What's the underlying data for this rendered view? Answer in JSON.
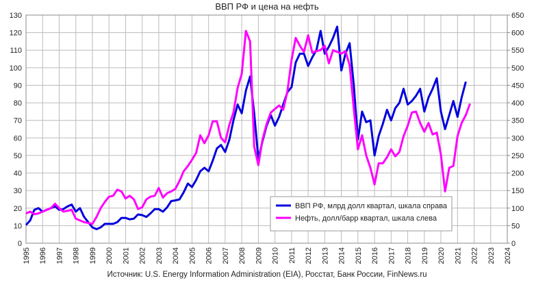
{
  "chart_data": {
    "type": "line",
    "title": "ВВП РФ и цена на нефть",
    "source": "Источник: U.S. Energy Information Administration (EIA), Росстат, Банк России, FinNews.ru",
    "x": [
      1995,
      1995.25,
      1995.5,
      1995.75,
      1996,
      1996.25,
      1996.5,
      1996.75,
      1997,
      1997.25,
      1997.5,
      1997.75,
      1998,
      1998.25,
      1998.5,
      1998.75,
      1999,
      1999.25,
      1999.5,
      1999.75,
      2000,
      2000.25,
      2000.5,
      2000.75,
      2001,
      2001.25,
      2001.5,
      2001.75,
      2002,
      2002.25,
      2002.5,
      2002.75,
      2003,
      2003.25,
      2003.5,
      2003.75,
      2004,
      2004.25,
      2004.5,
      2004.75,
      2005,
      2005.25,
      2005.5,
      2005.75,
      2006,
      2006.25,
      2006.5,
      2006.75,
      2007,
      2007.25,
      2007.5,
      2007.75,
      2008,
      2008.25,
      2008.5,
      2008.75,
      2009,
      2009.25,
      2009.5,
      2009.75,
      2010,
      2010.25,
      2010.5,
      2010.75,
      2011,
      2011.25,
      2011.5,
      2011.75,
      2012,
      2012.25,
      2012.5,
      2012.75,
      2013,
      2013.25,
      2013.5,
      2013.75,
      2014,
      2014.25,
      2014.5,
      2014.75,
      2015,
      2015.25,
      2015.5,
      2015.75,
      2016,
      2016.25,
      2016.5,
      2016.75,
      2017,
      2017.25,
      2017.5,
      2017.75,
      2018,
      2018.25,
      2018.5,
      2018.75,
      2019,
      2019.25,
      2019.5,
      2019.75,
      2020,
      2020.25,
      2020.5,
      2020.75,
      2021,
      2021.25,
      2021.5,
      2021.75
    ],
    "series": [
      {
        "name": "ВВП РФ, млрд долл квартал, шкала справа",
        "color": "#0000dd",
        "axis": "y2",
        "values": [
          52,
          65,
          95,
          100,
          90,
          95,
          100,
          105,
          95,
          97,
          105,
          110,
          90,
          100,
          75,
          60,
          45,
          40,
          45,
          55,
          55,
          55,
          60,
          72,
          72,
          68,
          70,
          82,
          80,
          75,
          85,
          97,
          97,
          90,
          102,
          120,
          122,
          125,
          145,
          170,
          160,
          180,
          205,
          215,
          205,
          235,
          270,
          280,
          260,
          295,
          350,
          395,
          370,
          435,
          475,
          370,
          240,
          290,
          335,
          365,
          335,
          360,
          395,
          430,
          445,
          515,
          540,
          540,
          505,
          530,
          550,
          605,
          540,
          560,
          585,
          617,
          492,
          540,
          570,
          450,
          295,
          375,
          345,
          350,
          250,
          305,
          340,
          380,
          350,
          385,
          400,
          440,
          395,
          405,
          420,
          440,
          375,
          415,
          440,
          470,
          375,
          325,
          365,
          405,
          360,
          415,
          460,
          null
        ]
      },
      {
        "name": "Нефть, долл/барр квартал, шкала слева",
        "color": "#ff00ff",
        "values": [
          17,
          18,
          16.5,
          17,
          18,
          19,
          20,
          22.5,
          20,
          18,
          18.5,
          19,
          14,
          13,
          12,
          11.5,
          11,
          15,
          20,
          23.5,
          26.5,
          27,
          30.5,
          29.5,
          25.5,
          27,
          25,
          19.5,
          20.5,
          25,
          26.5,
          27,
          31.5,
          26,
          28.5,
          29.5,
          31,
          35.5,
          41,
          44,
          47.5,
          51.5,
          61.5,
          57,
          61.5,
          69.5,
          69.5,
          60,
          57.5,
          67.5,
          74.5,
          88.5,
          96.5,
          121,
          115,
          55,
          44.5,
          59,
          68,
          74.5,
          76.5,
          78.5,
          76,
          86.5,
          104.5,
          117,
          112.5,
          109,
          118.5,
          108.5,
          109.5,
          110,
          112.5,
          102.5,
          110,
          109,
          108,
          109.5,
          101.5,
          76.5,
          53.5,
          61.5,
          50,
          43,
          33.5,
          45.5,
          45.5,
          49,
          53.5,
          49.5,
          52,
          61,
          67,
          74.5,
          75,
          68.5,
          63.5,
          68.5,
          62,
          63,
          50.5,
          29.5,
          43,
          44,
          61,
          68.5,
          73,
          79.5
        ]
      }
    ],
    "xlim": [
      1995,
      2024
    ],
    "xticks": [
      1995,
      1996,
      1997,
      1998,
      1999,
      2000,
      2001,
      2002,
      2003,
      2004,
      2005,
      2006,
      2007,
      2008,
      2009,
      2010,
      2011,
      2012,
      2013,
      2014,
      2015,
      2016,
      2017,
      2018,
      2019,
      2020,
      2021,
      2022,
      2023,
      2024
    ],
    "ylim": [
      0,
      130
    ],
    "yticks": [
      0,
      10,
      20,
      30,
      40,
      50,
      60,
      70,
      80,
      90,
      100,
      110,
      120,
      130
    ],
    "y2lim": [
      0,
      650
    ],
    "y2ticks": [
      0,
      50,
      100,
      150,
      200,
      250,
      300,
      350,
      400,
      450,
      500,
      550,
      600,
      650
    ],
    "grid": true,
    "legend": "lower right"
  }
}
